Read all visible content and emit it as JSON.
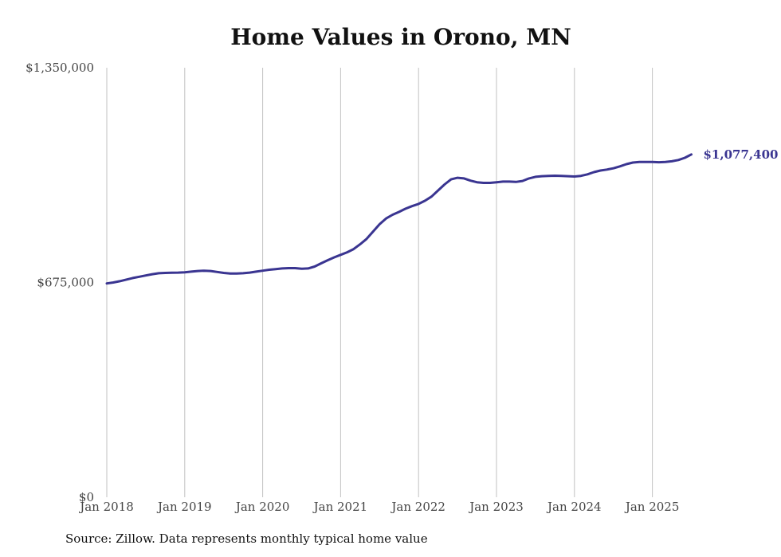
{
  "chart_data": {
    "type": "line",
    "title": "Home Values in Orono, MN",
    "xlabel": "",
    "ylabel": "",
    "ylim": [
      0,
      1350000
    ],
    "x_ticks": [
      "Jan 2018",
      "Jan 2019",
      "Jan 2020",
      "Jan 2021",
      "Jan 2022",
      "Jan 2023",
      "Jan 2024",
      "Jan 2025"
    ],
    "y_ticks": [
      {
        "value": 0,
        "label": "$0"
      },
      {
        "value": 675000,
        "label": "$675,000"
      },
      {
        "value": 1350000,
        "label": "$1,350,000"
      }
    ],
    "grid": "vertical",
    "line_color": "#3a3591",
    "end_label": "$1,077,400",
    "series": [
      {
        "points": [
          [
            "2018-01",
            672000
          ],
          [
            "2018-02",
            675000
          ],
          [
            "2018-03",
            679000
          ],
          [
            "2018-04",
            684000
          ],
          [
            "2018-05",
            689000
          ],
          [
            "2018-06",
            693000
          ],
          [
            "2018-07",
            697000
          ],
          [
            "2018-08",
            701000
          ],
          [
            "2018-09",
            704000
          ],
          [
            "2018-10",
            705000
          ],
          [
            "2018-11",
            705500
          ],
          [
            "2018-12",
            706000
          ],
          [
            "2019-01",
            707000
          ],
          [
            "2019-02",
            709000
          ],
          [
            "2019-03",
            711000
          ],
          [
            "2019-04",
            712000
          ],
          [
            "2019-05",
            711000
          ],
          [
            "2019-06",
            708000
          ],
          [
            "2019-07",
            705000
          ],
          [
            "2019-08",
            703000
          ],
          [
            "2019-09",
            703000
          ],
          [
            "2019-10",
            704000
          ],
          [
            "2019-11",
            706000
          ],
          [
            "2019-12",
            709000
          ],
          [
            "2020-01",
            712000
          ],
          [
            "2020-02",
            715000
          ],
          [
            "2020-03",
            717000
          ],
          [
            "2020-04",
            719000
          ],
          [
            "2020-05",
            720000
          ],
          [
            "2020-06",
            720000
          ],
          [
            "2020-07",
            718000
          ],
          [
            "2020-08",
            719000
          ],
          [
            "2020-09",
            725000
          ],
          [
            "2020-10",
            735000
          ],
          [
            "2020-11",
            745000
          ],
          [
            "2020-12",
            754000
          ],
          [
            "2021-01",
            762000
          ],
          [
            "2021-02",
            770000
          ],
          [
            "2021-03",
            780000
          ],
          [
            "2021-04",
            795000
          ],
          [
            "2021-05",
            812000
          ],
          [
            "2021-06",
            835000
          ],
          [
            "2021-07",
            858000
          ],
          [
            "2021-08",
            876000
          ],
          [
            "2021-09",
            888000
          ],
          [
            "2021-10",
            897000
          ],
          [
            "2021-11",
            907000
          ],
          [
            "2021-12",
            915000
          ],
          [
            "2022-01",
            922000
          ],
          [
            "2022-02",
            932000
          ],
          [
            "2022-03",
            945000
          ],
          [
            "2022-04",
            964000
          ],
          [
            "2022-05",
            983000
          ],
          [
            "2022-06",
            999000
          ],
          [
            "2022-07",
            1004000
          ],
          [
            "2022-08",
            1002000
          ],
          [
            "2022-09",
            995000
          ],
          [
            "2022-10",
            990000
          ],
          [
            "2022-11",
            988000
          ],
          [
            "2022-12",
            988000
          ],
          [
            "2023-01",
            990000
          ],
          [
            "2023-02",
            992000
          ],
          [
            "2023-03",
            992000
          ],
          [
            "2023-04",
            991000
          ],
          [
            "2023-05",
            994000
          ],
          [
            "2023-06",
            1002000
          ],
          [
            "2023-07",
            1007000
          ],
          [
            "2023-08",
            1009000
          ],
          [
            "2023-09",
            1010000
          ],
          [
            "2023-10",
            1010500
          ],
          [
            "2023-11",
            1010000
          ],
          [
            "2023-12",
            1009000
          ],
          [
            "2024-01",
            1008000
          ],
          [
            "2024-02",
            1010000
          ],
          [
            "2024-03",
            1015000
          ],
          [
            "2024-04",
            1022000
          ],
          [
            "2024-05",
            1027000
          ],
          [
            "2024-06",
            1030000
          ],
          [
            "2024-07",
            1034000
          ],
          [
            "2024-08",
            1040000
          ],
          [
            "2024-09",
            1047000
          ],
          [
            "2024-10",
            1052000
          ],
          [
            "2024-11",
            1054000
          ],
          [
            "2024-12",
            1054000
          ],
          [
            "2025-01",
            1054000
          ],
          [
            "2025-02",
            1053000
          ],
          [
            "2025-03",
            1054000
          ],
          [
            "2025-04",
            1056000
          ],
          [
            "2025-05",
            1060000
          ],
          [
            "2025-06",
            1067000
          ],
          [
            "2025-07",
            1077400
          ]
        ]
      }
    ]
  },
  "source_note": "Source: Zillow. Data represents monthly typical home value"
}
